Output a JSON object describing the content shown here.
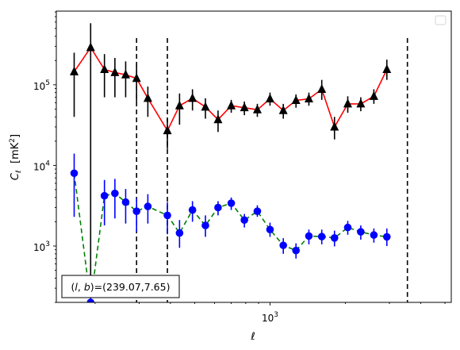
{
  "chart_data": {
    "type": "line",
    "title": "",
    "xlabel": "ℓ",
    "ylabel": "C_ℓ  [mK²]",
    "xscale": "log",
    "yscale": "log",
    "xlim": [
      140,
      5300
    ],
    "ylim": [
      200,
      820000
    ],
    "x_tick_labels": [
      {
        "value": 1000,
        "base": "10",
        "exp": "3"
      }
    ],
    "y_tick_labels": [
      {
        "value": 1000,
        "base": "10",
        "exp": "3"
      },
      {
        "value": 10000,
        "base": "10",
        "exp": "4"
      },
      {
        "value": 100000,
        "base": "10",
        "exp": "5"
      }
    ],
    "vlines": [
      293,
      389,
      3540
    ],
    "legend": {
      "placement": "top-right",
      "entries": []
    },
    "annotation": {
      "text": "(l, b)=(239.07,7.65)",
      "placement": "bottom-left"
    },
    "grid": false,
    "series": [
      {
        "color": "#ff0000",
        "marker": "triangle",
        "marker_color": "#000000",
        "errorbar_color": "#000000",
        "line_style": "solid",
        "points": [
          {
            "x": 165,
            "y": 145000,
            "lo": 40000,
            "hi": 250000
          },
          {
            "x": 192,
            "y": 290000,
            "lo": 200,
            "hi": 580000
          },
          {
            "x": 218,
            "y": 155000,
            "lo": 70000,
            "hi": 240000
          },
          {
            "x": 240,
            "y": 142000,
            "lo": 70000,
            "hi": 215000
          },
          {
            "x": 265,
            "y": 133000,
            "lo": 70000,
            "hi": 195000
          },
          {
            "x": 293,
            "y": 120000,
            "lo": 62000,
            "hi": 175000
          },
          {
            "x": 325,
            "y": 68000,
            "lo": 40000,
            "hi": 95000
          },
          {
            "x": 389,
            "y": 27000,
            "lo": 16000,
            "hi": 38000
          },
          {
            "x": 435,
            "y": 55000,
            "lo": 32000,
            "hi": 78000
          },
          {
            "x": 490,
            "y": 68000,
            "lo": 48000,
            "hi": 88000
          },
          {
            "x": 552,
            "y": 53000,
            "lo": 38000,
            "hi": 68000
          },
          {
            "x": 620,
            "y": 37000,
            "lo": 26000,
            "hi": 48000
          },
          {
            "x": 700,
            "y": 55000,
            "lo": 45000,
            "hi": 65000
          },
          {
            "x": 790,
            "y": 52000,
            "lo": 42000,
            "hi": 62000
          },
          {
            "x": 890,
            "y": 49000,
            "lo": 40000,
            "hi": 58000
          },
          {
            "x": 1000,
            "y": 67000,
            "lo": 55000,
            "hi": 80000
          },
          {
            "x": 1130,
            "y": 48000,
            "lo": 38000,
            "hi": 58000
          },
          {
            "x": 1270,
            "y": 64000,
            "lo": 52000,
            "hi": 76000
          },
          {
            "x": 1430,
            "y": 67000,
            "lo": 55000,
            "hi": 80000
          },
          {
            "x": 1610,
            "y": 88000,
            "lo": 65000,
            "hi": 115000
          },
          {
            "x": 1810,
            "y": 30000,
            "lo": 21000,
            "hi": 40000
          },
          {
            "x": 2045,
            "y": 58000,
            "lo": 45000,
            "hi": 72000
          },
          {
            "x": 2305,
            "y": 58000,
            "lo": 47000,
            "hi": 70000
          },
          {
            "x": 2600,
            "y": 72000,
            "lo": 58000,
            "hi": 88000
          },
          {
            "x": 2930,
            "y": 155000,
            "lo": 115000,
            "hi": 205000
          }
        ]
      },
      {
        "color": "#008000",
        "marker": "circle",
        "marker_color": "#0000ff",
        "errorbar_color": "#0000ff",
        "line_style": "dashed",
        "points": [
          {
            "x": 165,
            "y": 8000,
            "lo": 2300,
            "hi": 14000
          },
          {
            "x": 192,
            "y": 200,
            "lo": 200,
            "hi": 400
          },
          {
            "x": 218,
            "y": 4200,
            "lo": 1800,
            "hi": 6600
          },
          {
            "x": 240,
            "y": 4500,
            "lo": 2200,
            "hi": 6800
          },
          {
            "x": 265,
            "y": 3500,
            "lo": 1900,
            "hi": 5100
          },
          {
            "x": 293,
            "y": 2700,
            "lo": 1500,
            "hi": 3900
          },
          {
            "x": 325,
            "y": 3100,
            "lo": 1900,
            "hi": 4400
          },
          {
            "x": 389,
            "y": 2400,
            "lo": 1400,
            "hi": 3500
          },
          {
            "x": 435,
            "y": 1450,
            "lo": 950,
            "hi": 2100
          },
          {
            "x": 490,
            "y": 2800,
            "lo": 2000,
            "hi": 3600
          },
          {
            "x": 552,
            "y": 1800,
            "lo": 1300,
            "hi": 2400
          },
          {
            "x": 620,
            "y": 3000,
            "lo": 2400,
            "hi": 3600
          },
          {
            "x": 700,
            "y": 3400,
            "lo": 2800,
            "hi": 4000
          },
          {
            "x": 790,
            "y": 2100,
            "lo": 1700,
            "hi": 2500
          },
          {
            "x": 890,
            "y": 2700,
            "lo": 2300,
            "hi": 3200
          },
          {
            "x": 1000,
            "y": 1600,
            "lo": 1300,
            "hi": 1950
          },
          {
            "x": 1130,
            "y": 1020,
            "lo": 800,
            "hi": 1250
          },
          {
            "x": 1270,
            "y": 880,
            "lo": 700,
            "hi": 1080
          },
          {
            "x": 1430,
            "y": 1330,
            "lo": 1050,
            "hi": 1600
          },
          {
            "x": 1610,
            "y": 1310,
            "lo": 1050,
            "hi": 1600
          },
          {
            "x": 1810,
            "y": 1260,
            "lo": 990,
            "hi": 1550
          },
          {
            "x": 2045,
            "y": 1700,
            "lo": 1380,
            "hi": 2050
          },
          {
            "x": 2305,
            "y": 1500,
            "lo": 1200,
            "hi": 1800
          },
          {
            "x": 2600,
            "y": 1370,
            "lo": 1100,
            "hi": 1650
          },
          {
            "x": 2930,
            "y": 1300,
            "lo": 1000,
            "hi": 1650
          }
        ]
      }
    ]
  }
}
